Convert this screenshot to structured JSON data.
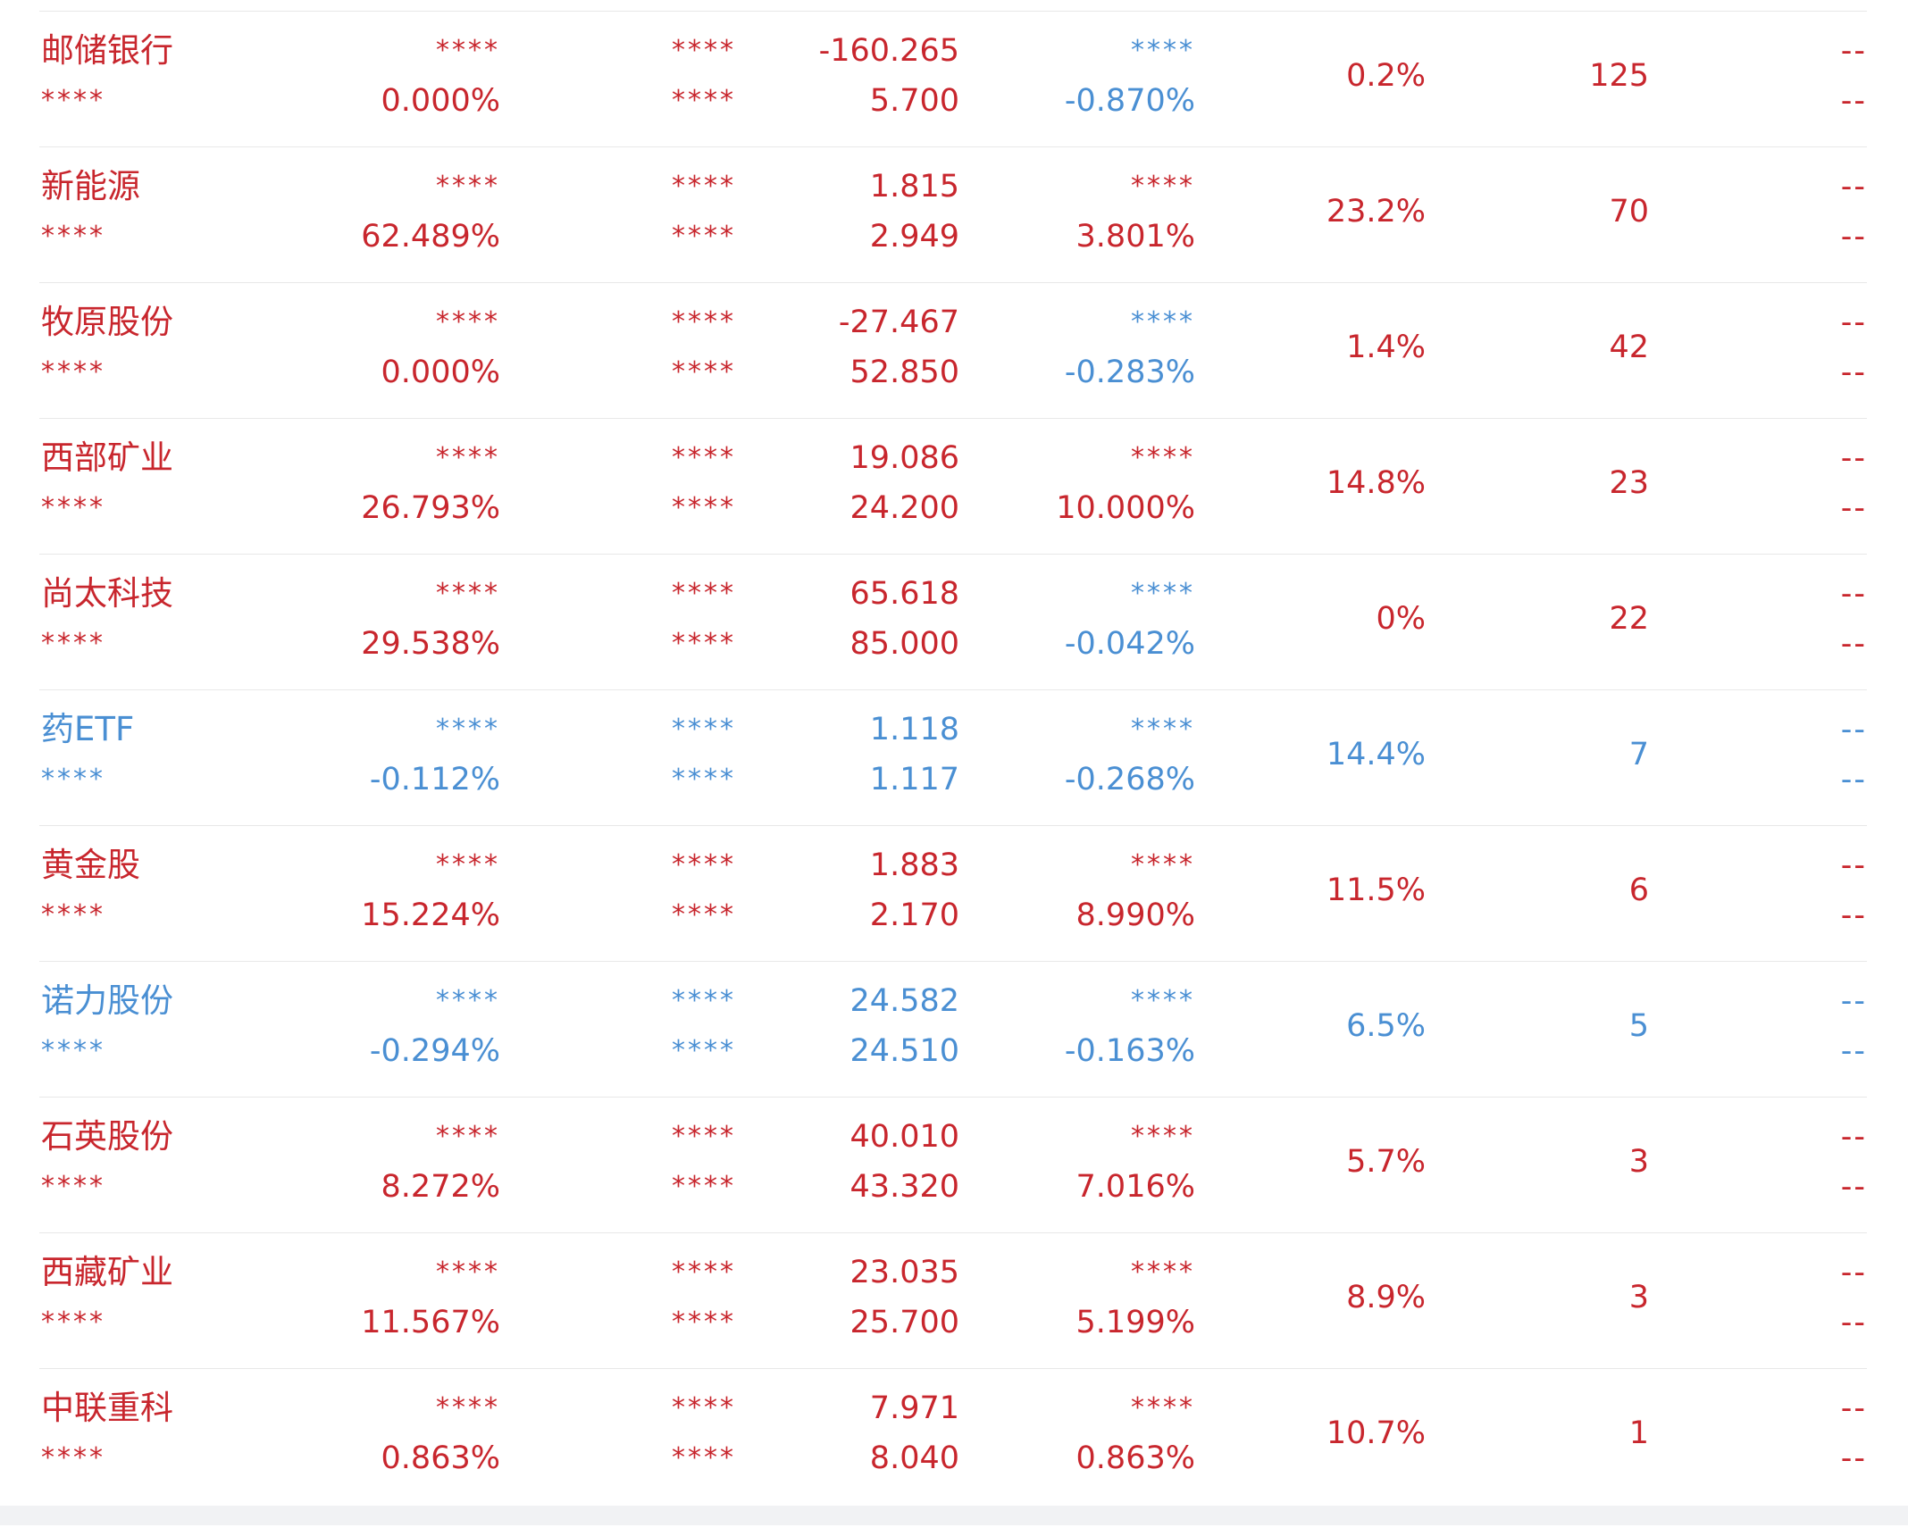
{
  "colors": {
    "up": "#c8262d",
    "down": "#4a8fd3",
    "divider": "#e8e8e8",
    "footer": "#f1f2f4"
  },
  "placeholder": "****",
  "empty": "--",
  "rows": [
    {
      "name": "邮储银行",
      "color": "red",
      "c2": "****",
      "c2b": "0.000%",
      "c3": "****",
      "c3b": "****",
      "c4": "-160.265",
      "c4b": "5.700",
      "c5": "****",
      "c5b": "-0.870%",
      "c5color": "blue",
      "c6": "0.2%",
      "c7": "125",
      "c8": "--",
      "c8b": "--"
    },
    {
      "name": "新能源",
      "color": "red",
      "c2": "****",
      "c2b": "62.489%",
      "c3": "****",
      "c3b": "****",
      "c4": "1.815",
      "c4b": "2.949",
      "c5": "****",
      "c5b": "3.801%",
      "c5color": "red",
      "c6": "23.2%",
      "c7": "70",
      "c8": "--",
      "c8b": "--"
    },
    {
      "name": "牧原股份",
      "color": "red",
      "c2": "****",
      "c2b": "0.000%",
      "c3": "****",
      "c3b": "****",
      "c4": "-27.467",
      "c4b": "52.850",
      "c5": "****",
      "c5b": "-0.283%",
      "c5color": "blue",
      "c6": "1.4%",
      "c7": "42",
      "c8": "--",
      "c8b": "--"
    },
    {
      "name": "西部矿业",
      "color": "red",
      "c2": "****",
      "c2b": "26.793%",
      "c3": "****",
      "c3b": "****",
      "c4": "19.086",
      "c4b": "24.200",
      "c5": "****",
      "c5b": "10.000%",
      "c5color": "red",
      "c6": "14.8%",
      "c7": "23",
      "c8": "--",
      "c8b": "--"
    },
    {
      "name": "尚太科技",
      "color": "red",
      "c2": "****",
      "c2b": "29.538%",
      "c3": "****",
      "c3b": "****",
      "c4": "65.618",
      "c4b": "85.000",
      "c5": "****",
      "c5b": "-0.042%",
      "c5color": "blue",
      "c6": "0%",
      "c7": "22",
      "c8": "--",
      "c8b": "--"
    },
    {
      "name": "药ETF",
      "color": "blue",
      "c2": "****",
      "c2b": "-0.112%",
      "c3": "****",
      "c3b": "****",
      "c4": "1.118",
      "c4b": "1.117",
      "c5": "****",
      "c5b": "-0.268%",
      "c5color": "blue",
      "c6": "14.4%",
      "c7": "7",
      "c8": "--",
      "c8b": "--"
    },
    {
      "name": "黄金股",
      "color": "red",
      "c2": "****",
      "c2b": "15.224%",
      "c3": "****",
      "c3b": "****",
      "c4": "1.883",
      "c4b": "2.170",
      "c5": "****",
      "c5b": "8.990%",
      "c5color": "red",
      "c6": "11.5%",
      "c7": "6",
      "c8": "--",
      "c8b": "--"
    },
    {
      "name": "诺力股份",
      "color": "blue",
      "c2": "****",
      "c2b": "-0.294%",
      "c3": "****",
      "c3b": "****",
      "c4": "24.582",
      "c4b": "24.510",
      "c5": "****",
      "c5b": "-0.163%",
      "c5color": "blue",
      "c6": "6.5%",
      "c7": "5",
      "c8": "--",
      "c8b": "--"
    },
    {
      "name": "石英股份",
      "color": "red",
      "c2": "****",
      "c2b": "8.272%",
      "c3": "****",
      "c3b": "****",
      "c4": "40.010",
      "c4b": "43.320",
      "c5": "****",
      "c5b": "7.016%",
      "c5color": "red",
      "c6": "5.7%",
      "c7": "3",
      "c8": "--",
      "c8b": "--"
    },
    {
      "name": "西藏矿业",
      "color": "red",
      "c2": "****",
      "c2b": "11.567%",
      "c3": "****",
      "c3b": "****",
      "c4": "23.035",
      "c4b": "25.700",
      "c5": "****",
      "c5b": "5.199%",
      "c5color": "red",
      "c6": "8.9%",
      "c7": "3",
      "c8": "--",
      "c8b": "--"
    },
    {
      "name": "中联重科",
      "color": "red",
      "c2": "****",
      "c2b": "0.863%",
      "c3": "****",
      "c3b": "****",
      "c4": "7.971",
      "c4b": "8.040",
      "c5": "****",
      "c5b": "0.863%",
      "c5color": "red",
      "c6": "10.7%",
      "c7": "1",
      "c8": "--",
      "c8b": "--"
    }
  ]
}
